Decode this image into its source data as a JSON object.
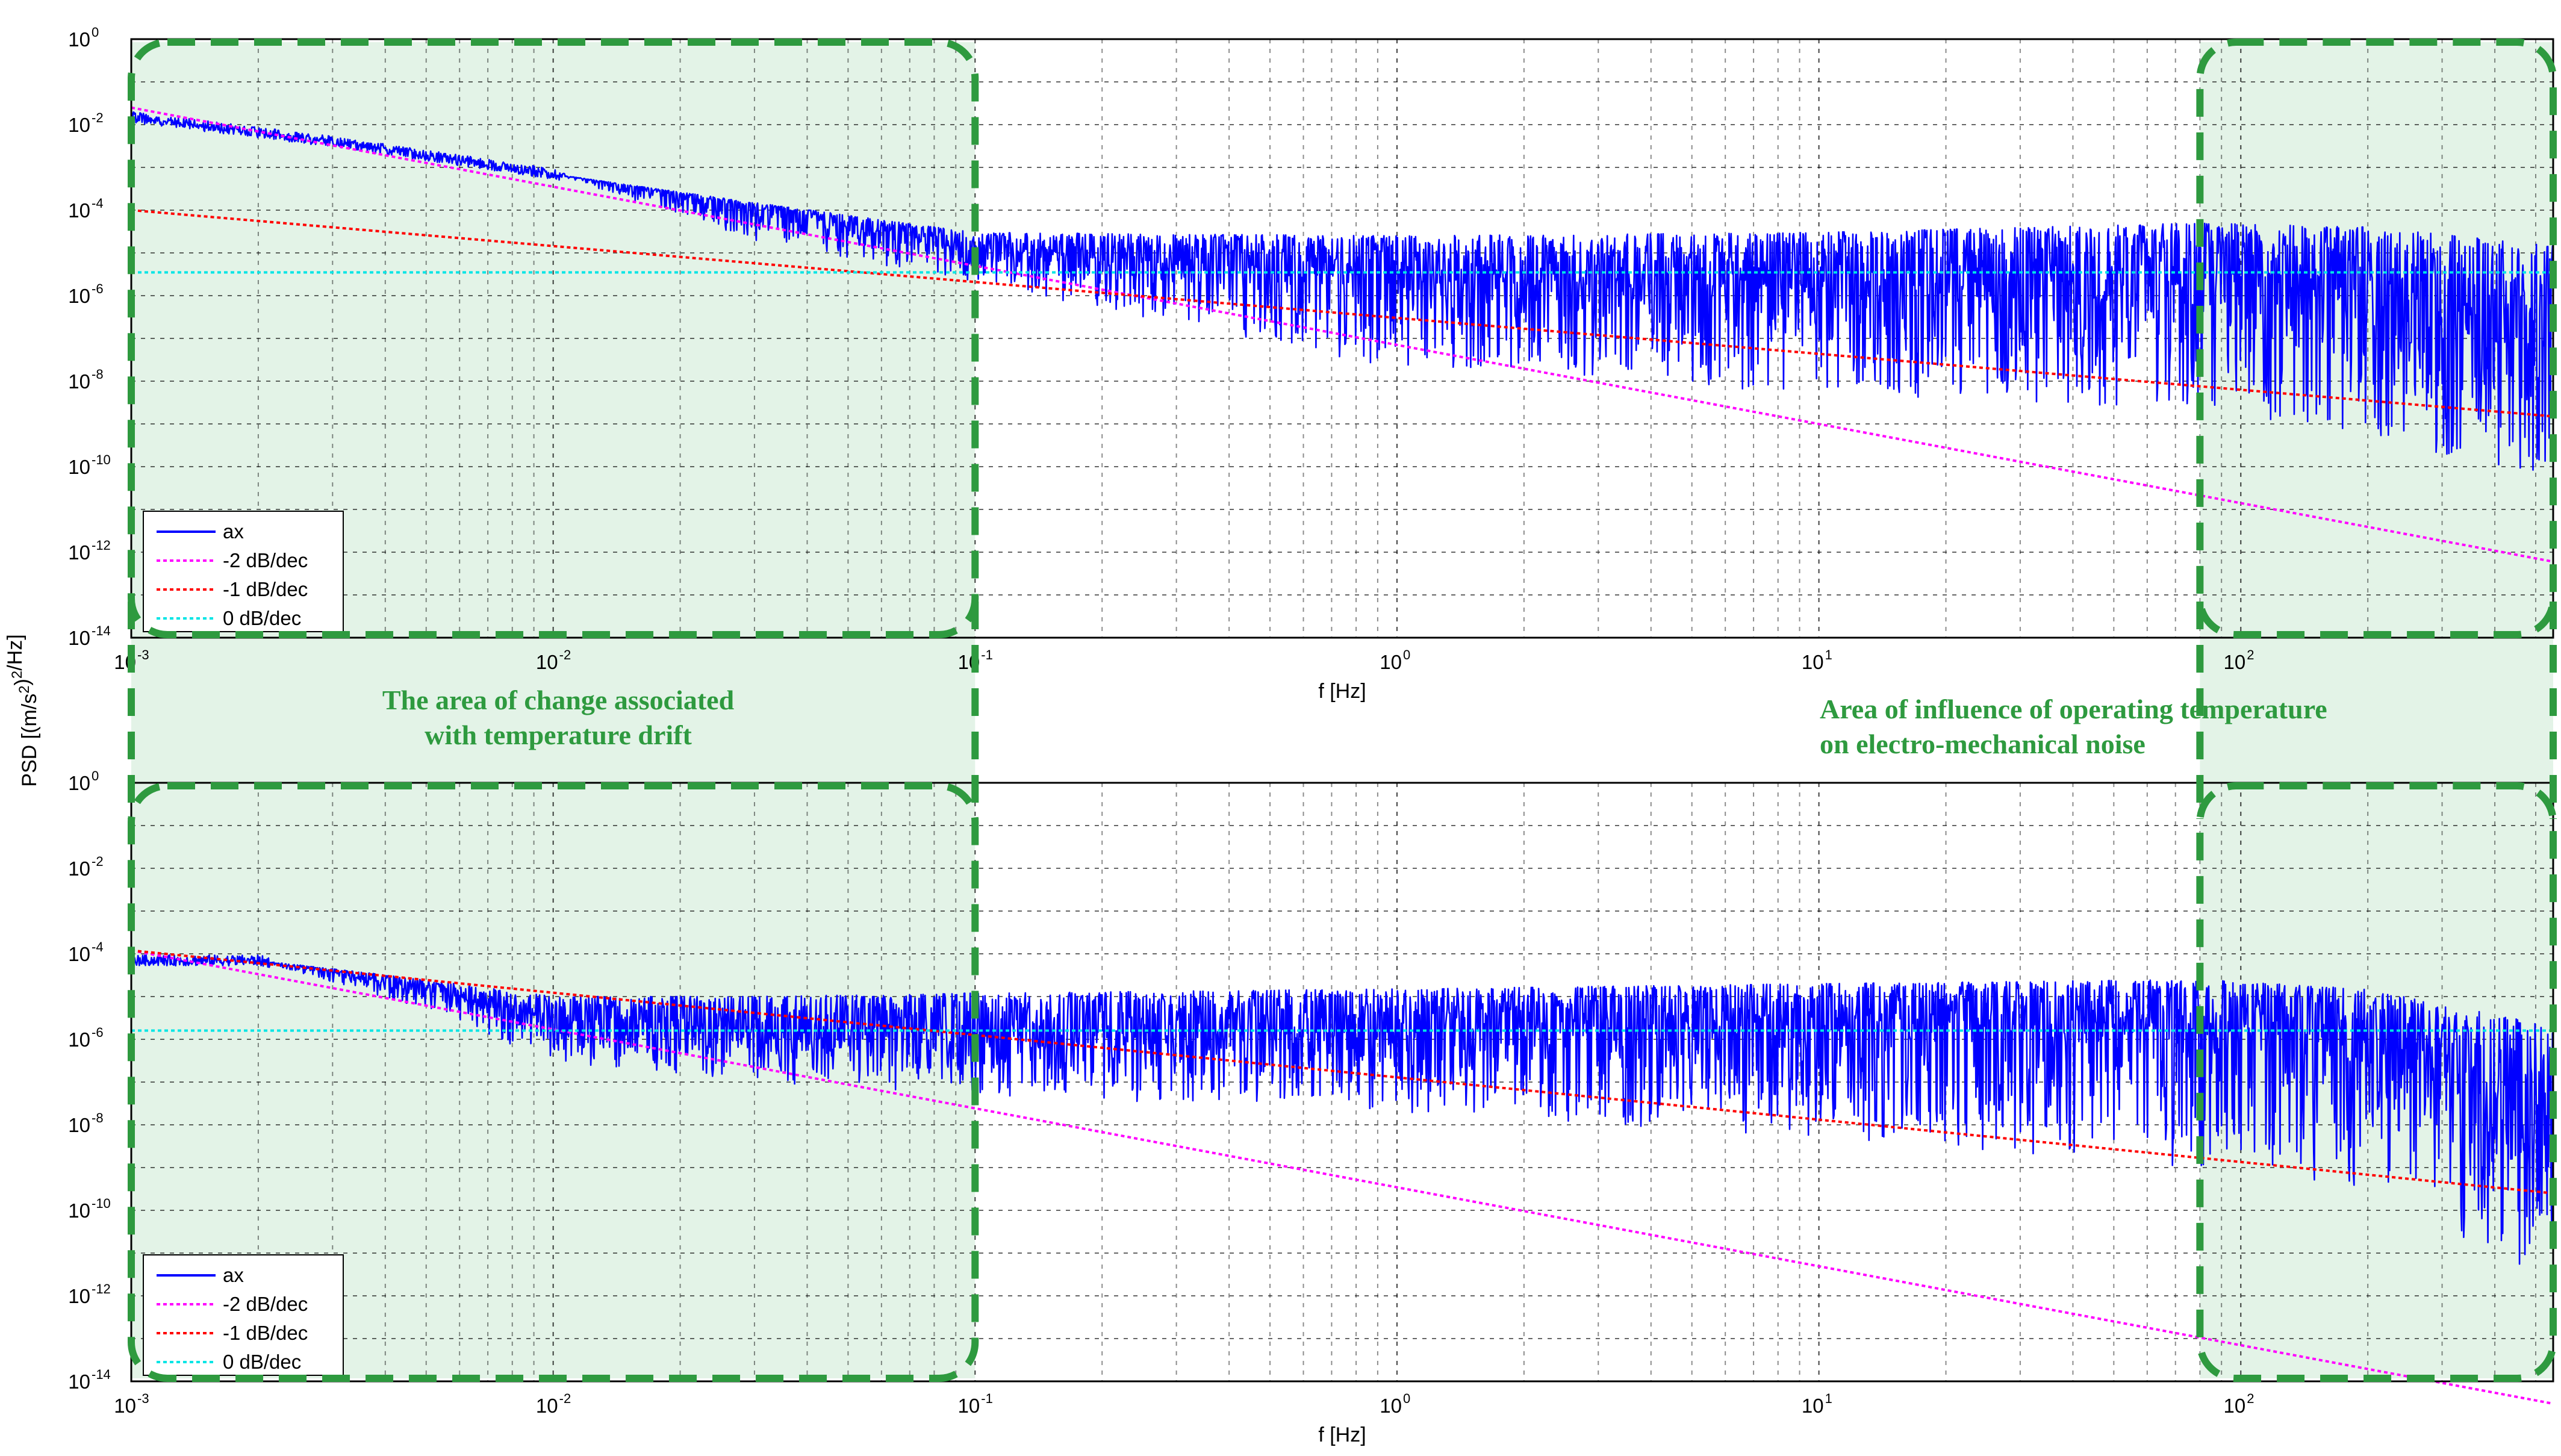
{
  "chart_data": [
    {
      "type": "line",
      "panel": "top",
      "xscale": "log",
      "yscale": "log",
      "xlim": [
        0.001,
        550
      ],
      "ylim": [
        1e-14,
        1
      ],
      "xlabel": "f [Hz]",
      "ylabel": "PSD [(m/s2)2/Hz]",
      "xticks": [
        0.001,
        0.01,
        0.1,
        1,
        10,
        100
      ],
      "yticks": [
        1e-14,
        1e-12,
        1e-10,
        1e-08,
        1e-06,
        0.0001,
        0.01,
        1
      ],
      "grid": true,
      "legend_position": "bottom-left",
      "series": [
        {
          "name": "ax",
          "style": "solid",
          "color": "#0000ff",
          "trend": {
            "x": [
              0.001,
              0.003,
              0.01,
              0.03,
              0.1,
              1,
              10,
              80,
              200,
              550
            ],
            "center": [
              0.015,
              0.004,
              0.0007,
              0.00012,
              1.2e-05,
              2.5e-06,
              1.6e-06,
              1e-06,
              8e-07,
              2e-07
            ],
            "upper": [
              0.015,
              0.004,
              0.0007,
              0.00015,
              3e-05,
              2.5e-05,
              3e-05,
              5e-05,
              4e-05,
              1.5e-05
            ],
            "lower": [
              0.015,
              0.004,
              0.0007,
              2e-05,
              2e-06,
              2e-08,
              5e-09,
              2e-09,
              5e-10,
              5e-11
            ]
          }
        },
        {
          "name": "-2 dB/dec",
          "style": "dotted",
          "color": "#ff00ff",
          "x": [
            0.001,
            550
          ],
          "y": [
            0.025,
            6e-13
          ]
        },
        {
          "name": "-1 dB/dec",
          "style": "dotted",
          "color": "#ff0000",
          "x": [
            0.001,
            550
          ],
          "y": [
            0.0001,
            1.5e-09
          ]
        },
        {
          "name": "0 dB/dec",
          "style": "dotted",
          "color": "#00e5e5",
          "x": [
            0.001,
            550
          ],
          "y": [
            3.5e-06,
            3.5e-06
          ]
        }
      ]
    },
    {
      "type": "line",
      "panel": "bottom",
      "xscale": "log",
      "yscale": "log",
      "xlim": [
        0.001,
        550
      ],
      "ylim": [
        1e-14,
        1
      ],
      "xlabel": "f [Hz]",
      "ylabel": "PSD [(m/s2)2/Hz]",
      "xticks": [
        0.001,
        0.01,
        0.1,
        1,
        10,
        100
      ],
      "yticks": [
        1e-14,
        1e-12,
        1e-10,
        1e-08,
        1e-06,
        0.0001,
        0.01,
        1
      ],
      "grid": true,
      "legend_position": "bottom-left",
      "series": [
        {
          "name": "ax",
          "style": "solid",
          "color": "#0000ff",
          "trend": {
            "x": [
              0.001,
              0.002,
              0.005,
              0.01,
              0.03,
              0.1,
              1,
              10,
              80,
              200,
              550
            ],
            "center": [
              7e-05,
              7e-05,
              1.5e-05,
              3e-06,
              1.5e-06,
              1.2e-06,
              1.5e-06,
              2e-06,
              2.5e-06,
              1e-06,
              1e-08
            ],
            "upper": [
              7e-05,
              7e-05,
              2.5e-05,
              1e-05,
              1e-05,
              1.2e-05,
              1.5e-05,
              2e-05,
              2.5e-05,
              1.5e-05,
              2e-06
            ],
            "lower": [
              7e-05,
              7e-05,
              5e-06,
              3e-07,
              1e-07,
              5e-08,
              2e-08,
              5e-09,
              1e-09,
              3e-10,
              2e-12
            ]
          }
        },
        {
          "name": "-2 dB/dec",
          "style": "dotted",
          "color": "#ff00ff",
          "x": [
            0.001,
            550
          ],
          "y": [
            0.00012,
            3e-15
          ]
        },
        {
          "name": "-1 dB/dec",
          "style": "dotted",
          "color": "#ff0000",
          "x": [
            0.001,
            550
          ],
          "y": [
            0.00012,
            2.5e-10
          ]
        },
        {
          "name": "0 dB/dec",
          "style": "dotted",
          "color": "#00e5e5",
          "x": [
            0.001,
            550
          ],
          "y": [
            1.6e-06,
            1.6e-06
          ]
        }
      ]
    }
  ],
  "annotations": {
    "left_region": {
      "lines": [
        "The area of change associated",
        "with temperature drift"
      ],
      "x_range": [
        0.001,
        0.1
      ]
    },
    "right_region": {
      "lines": [
        "Area  of  influence  of  operating  temperature",
        "on electro-mechanical  noise"
      ],
      "x_range": [
        80,
        550
      ]
    }
  },
  "colors": {
    "highlight_fill": "#e3f3e7",
    "highlight_border": "#2e9a3f",
    "grid": "#000000"
  }
}
